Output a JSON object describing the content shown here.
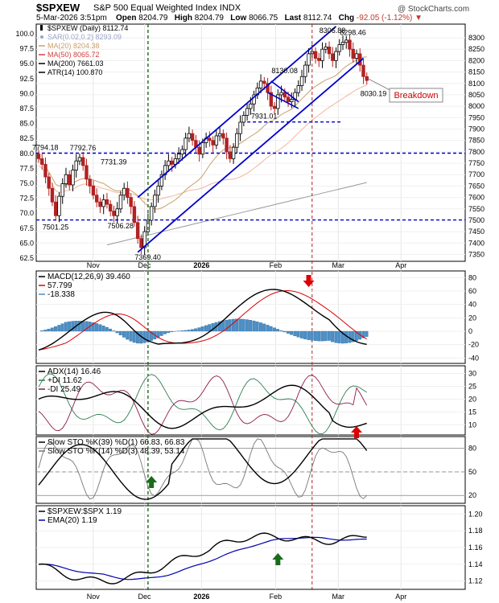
{
  "header": {
    "symbol": "$SPXEW",
    "description": "S&P 500 Equal Weighted Index  INDX",
    "copyright": "@ StockCharts.com",
    "date": "5-Mar-2026 3:51pm",
    "open_label": "Open",
    "open": "8204.79",
    "high_label": "High",
    "high": "8204.79",
    "low_label": "Low",
    "low": "8066.75",
    "last_label": "Last",
    "last": "8112.74",
    "chg_label": "Chg",
    "chg": "-92.05 (-1.12%)",
    "chg_arrow": "▼"
  },
  "x_axis": {
    "labels": [
      "Nov",
      "Dec",
      "2026",
      "Feb",
      "Mar",
      "Apr"
    ],
    "positions": [
      0.1,
      0.19,
      0.29,
      0.42,
      0.53,
      0.64
    ]
  },
  "colors": {
    "candle_up": "#000000",
    "candle_down": "#b22222",
    "channel": "#0000cc",
    "support": "#0000cc",
    "ma20": "#c8a06a",
    "ma50": "#f0b8a0",
    "ma200": "#999999",
    "macd_line": "#000000",
    "signal_line": "#dd0000",
    "hist": "#4a8fc8",
    "adx": "#000000",
    "plus_di": "#2e7d4f",
    "minus_di": "#8b1a4a",
    "sto_k": "#000000",
    "sto_d": "#cc0000",
    "sto2_k": "#777777",
    "sto2_d": "#e07070",
    "ratio": "#000000",
    "ratio_ema": "#0000aa",
    "up_arrow": "#1a6b1a",
    "down_arrow": "#dd0000"
  },
  "chart_data": [
    {
      "type": "candlestick",
      "title": "$SPXEW (Daily) 8112.74",
      "legend": [
        {
          "name": "$SPXEW (Daily) 8112.74",
          "color": "#000000",
          "marker": "candle"
        },
        {
          "name": "SAR(0.02,0.2) 8293.09",
          "color": "#9aa3c7",
          "marker": "dot"
        },
        {
          "name": "MA(20) 8204.38",
          "color": "#c8a06a",
          "marker": "line"
        },
        {
          "name": "MA(50) 8065.72",
          "color": "#d04040",
          "marker": "line"
        },
        {
          "name": "MA(200) 7661.03",
          "color": "#000000",
          "marker": "line"
        },
        {
          "name": "ATR(14) 100.870",
          "color": "#000000",
          "marker": "line"
        }
      ],
      "y_left": {
        "ticks": [
          "100.0",
          "97.5",
          "95.0",
          "92.5",
          "90.0",
          "87.5",
          "85.0",
          "82.5",
          "80.0",
          "77.5",
          "75.0",
          "72.5",
          "70.0",
          "67.5",
          "65.0",
          "62.5"
        ]
      },
      "y_right": {
        "ticks": [
          "8300",
          "8250",
          "8200",
          "8150",
          "8100",
          "8050",
          "8000",
          "7950",
          "7900",
          "7850",
          "7800",
          "7750",
          "7700",
          "7650",
          "7600",
          "7550",
          "7500",
          "7450",
          "7400",
          "7350"
        ]
      },
      "ylim": [
        7320,
        8360
      ],
      "closes": [
        7770,
        7745,
        7690,
        7640,
        7580,
        7520,
        7605,
        7660,
        7700,
        7655,
        7720,
        7760,
        7775,
        7740,
        7680,
        7650,
        7610,
        7580,
        7560,
        7590,
        7570,
        7540,
        7520,
        7550,
        7610,
        7640,
        7600,
        7560,
        7490,
        7420,
        7380,
        7450,
        7500,
        7560,
        7610,
        7650,
        7700,
        7740,
        7760,
        7745,
        7770,
        7790,
        7810,
        7860,
        7880,
        7850,
        7820,
        7790,
        7840,
        7860,
        7850,
        7830,
        7870,
        7880,
        7860,
        7800,
        7770,
        7820,
        7880,
        7930,
        7960,
        7990,
        8010,
        8050,
        8080,
        8110,
        8100,
        8060,
        8000,
        7990,
        8050,
        8060,
        8040,
        8020,
        8030,
        8060,
        8090,
        8130,
        8180,
        8230,
        8240,
        8210,
        8200,
        8250,
        8260,
        8230,
        8200,
        8240,
        8270,
        8280,
        8290,
        8250,
        8210,
        8230,
        8180,
        8130,
        8112.74
      ],
      "annotations": [
        {
          "label": "7794.18",
          "x": 0,
          "y": 7794.18
        },
        {
          "label": "7792.76",
          "x": 11,
          "y": 7792.76
        },
        {
          "label": "7731.39",
          "x": 20,
          "y": 7731.39
        },
        {
          "label": "7501.25",
          "x": 3,
          "y": 7501.25
        },
        {
          "label": "7506.28",
          "x": 22,
          "y": 7506.28
        },
        {
          "label": "7369.40",
          "x": 30,
          "y": 7369.4
        },
        {
          "label": "7931.01",
          "x": 64,
          "y": 7931.01
        },
        {
          "label": "8130.08",
          "x": 70,
          "y": 8130.08
        },
        {
          "label": "8306.88",
          "x": 84,
          "y": 8306.88
        },
        {
          "label": "8298.46",
          "x": 90,
          "y": 8298.46
        },
        {
          "label": "8030.19",
          "x": 96,
          "y": 8030.19
        },
        {
          "label": "Breakdown",
          "x": 97,
          "y": 8050
        }
      ],
      "support_levels": [
        7931.01,
        7794.18,
        7501.25
      ]
    },
    {
      "type": "line",
      "title": "MACD(12,26,9) 39.460, 57.799, -18.338",
      "legend": [
        {
          "name": "MACD(12,26,9) 39.460",
          "color": "#000000"
        },
        {
          "name": "57.799",
          "color": "#dd0000"
        },
        {
          "name": "-18.338",
          "color": "#4a8fc8"
        }
      ],
      "y_ticks": [
        "80",
        "60",
        "40",
        "20",
        "0",
        "-20",
        "-40"
      ],
      "ylim": [
        -48,
        90
      ]
    },
    {
      "type": "line",
      "title": "ADX(14) 16.46 +DI 11.62 -DI 25.49",
      "legend": [
        {
          "name": "ADX(14) 16.46",
          "color": "#000000"
        },
        {
          "name": "+DI 11.62",
          "color": "#2e7d4f"
        },
        {
          "name": "-DI 25.49",
          "color": "#8b1a4a"
        }
      ],
      "y_ticks": [
        "30",
        "25",
        "20",
        "15",
        "10"
      ],
      "ylim": [
        6,
        33
      ]
    },
    {
      "type": "line",
      "title": "Slow STO %K(39) %D(1) 66.83, 66.83",
      "legend": [
        {
          "name": "Slow STO %K(39) %D(1) 66.83, 66.83",
          "color": "#000000"
        },
        {
          "name": "Slow STO %K(14) %D(3) 48.39, 53.14",
          "color": "#777777"
        }
      ],
      "y_ticks": [
        "80",
        "50",
        "20"
      ],
      "ylim": [
        10,
        95
      ]
    },
    {
      "type": "line",
      "title": "$SPXEW:$SPX 1.19",
      "legend": [
        {
          "name": "$SPXEW:$SPX 1.19",
          "color": "#000000"
        },
        {
          "name": "EMA(20) 1.19",
          "color": "#0000aa"
        }
      ],
      "y_ticks": [
        "1.20",
        "1.18",
        "1.16",
        "1.14",
        "1.12"
      ],
      "ylim": [
        1.11,
        1.21
      ]
    }
  ]
}
